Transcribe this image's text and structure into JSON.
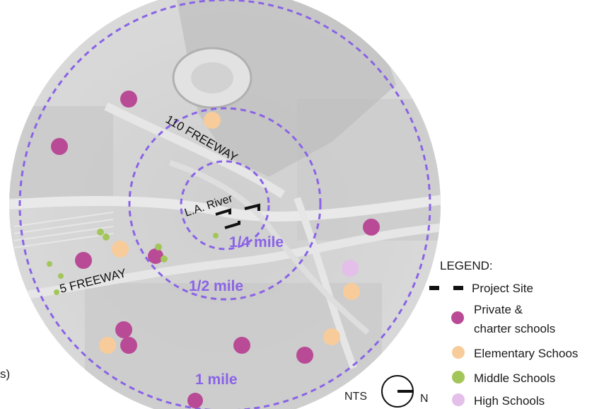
{
  "map": {
    "roads": {
      "freeway_110": "110 FREEWAY",
      "freeway_5": "5 FREEWAY"
    },
    "river_label": "L.A. River",
    "rings": [
      {
        "label": "1/4 mile"
      },
      {
        "label": "1/2 mile"
      },
      {
        "label": "1 mile"
      }
    ],
    "ring_color": "#8a63e6",
    "edge_fragment": "s)",
    "scale_label": "NTS",
    "north_label": "N"
  },
  "legend": {
    "title": "LEGEND:",
    "items": [
      {
        "label": "Project Site",
        "icon": "dashed-line-icon",
        "color": "#111111"
      },
      {
        "label": "Private &",
        "label2": "charter schools",
        "icon": "purple-dot-icon",
        "color": "#b94a96"
      },
      {
        "label": "Elementary Schoos",
        "icon": "peach-dot-icon",
        "color": "#f7cc9a"
      },
      {
        "label": "Middle Schools",
        "icon": "green-dot-icon",
        "color": "#a3c65a"
      },
      {
        "label": "High Schools",
        "icon": "lavender-dot-icon",
        "color": "#e3bfe9"
      }
    ]
  }
}
